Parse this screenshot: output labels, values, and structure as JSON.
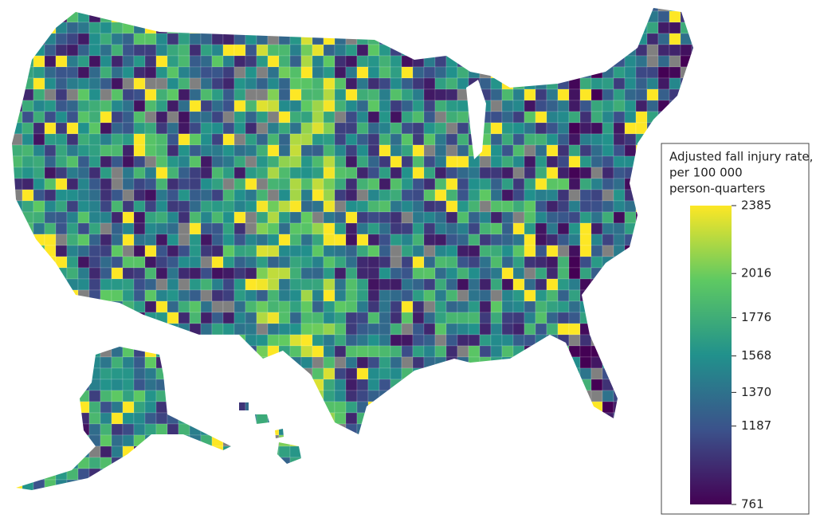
{
  "chart_data": {
    "type": "choropleth",
    "legend_title": [
      "Adjusted fall injury rate,",
      "per 100 000",
      "person-quarters"
    ],
    "colorbar": {
      "lim": [
        761,
        2385
      ],
      "ticks": [
        2385,
        2016,
        1776,
        1568,
        1370,
        1187,
        761
      ]
    },
    "colormap": [
      "#440154",
      "#3b528b",
      "#21918c",
      "#5ec962",
      "#fde725"
    ],
    "missing_color": "#808080"
  }
}
